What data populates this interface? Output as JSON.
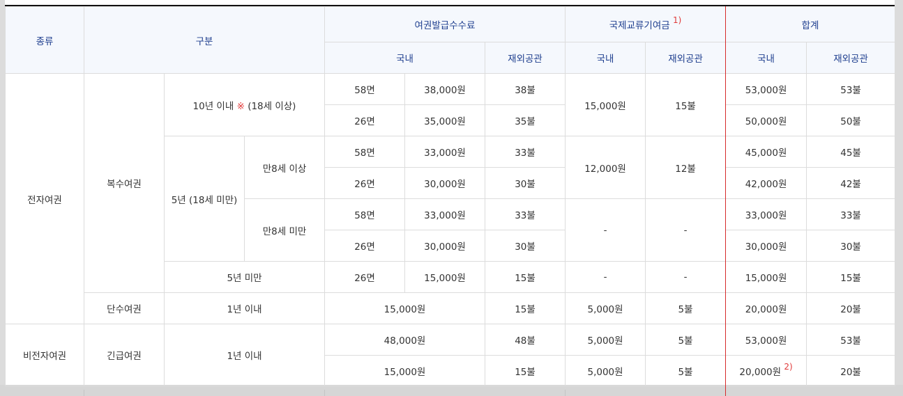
{
  "header": {
    "kind": "종류",
    "category": "구분",
    "issue_fee": "여권발급수수료",
    "intl_fee": "국제교류기여금",
    "intl_fee_note": "1)",
    "total": "합계",
    "domestic": "국내",
    "overseas": "재외공관"
  },
  "groups": {
    "electronic": "전자여권",
    "non_electronic": "비전자여권",
    "multiple": "복수여권",
    "single": "단수여권",
    "emergency": "긴급여권",
    "ten_year_prefix": "10년 이내",
    "ten_year_mark": "※",
    "ten_year_suffix": "(18세 이상)",
    "five_year_minor": "5년 (18세 미만)",
    "age8_over": "만8세 이상",
    "age8_under": "만8세 미만",
    "under_five": "5년 미만",
    "one_year": "1년 이내"
  },
  "rows": [
    {
      "pages": "58면",
      "fee_dom": "38,000원",
      "fee_ovs": "38불",
      "intl_dom": "15,000원",
      "intl_ovs": "15불",
      "total_dom": "53,000원",
      "total_ovs": "53불"
    },
    {
      "pages": "26면",
      "fee_dom": "35,000원",
      "fee_ovs": "35불",
      "total_dom": "50,000원",
      "total_ovs": "50불"
    },
    {
      "pages": "58면",
      "fee_dom": "33,000원",
      "fee_ovs": "33불",
      "intl_dom": "12,000원",
      "intl_ovs": "12불",
      "total_dom": "45,000원",
      "total_ovs": "45불"
    },
    {
      "pages": "26면",
      "fee_dom": "30,000원",
      "fee_ovs": "30불",
      "total_dom": "42,000원",
      "total_ovs": "42불"
    },
    {
      "pages": "58면",
      "fee_dom": "33,000원",
      "fee_ovs": "33불",
      "intl_dom": "-",
      "intl_ovs": "-",
      "total_dom": "33,000원",
      "total_ovs": "33불"
    },
    {
      "pages": "26면",
      "fee_dom": "30,000원",
      "fee_ovs": "30불",
      "total_dom": "30,000원",
      "total_ovs": "30불"
    },
    {
      "pages": "26면",
      "fee_dom": "15,000원",
      "fee_ovs": "15불",
      "intl_dom": "-",
      "intl_ovs": "-",
      "total_dom": "15,000원",
      "total_ovs": "15불"
    },
    {
      "fee_dom": "15,000원",
      "fee_ovs": "15불",
      "intl_dom": "5,000원",
      "intl_ovs": "5불",
      "total_dom": "20,000원",
      "total_ovs": "20불"
    },
    {
      "fee_dom": "48,000원",
      "fee_ovs": "48불",
      "intl_dom": "5,000원",
      "intl_ovs": "5불",
      "total_dom": "53,000원",
      "total_ovs": "53불"
    },
    {
      "fee_dom": "15,000원",
      "fee_ovs": "15불",
      "intl_dom": "5,000원",
      "intl_ovs": "5불",
      "total_dom": "20,000원",
      "total_dom_note": "2)",
      "total_ovs": "20불"
    }
  ]
}
